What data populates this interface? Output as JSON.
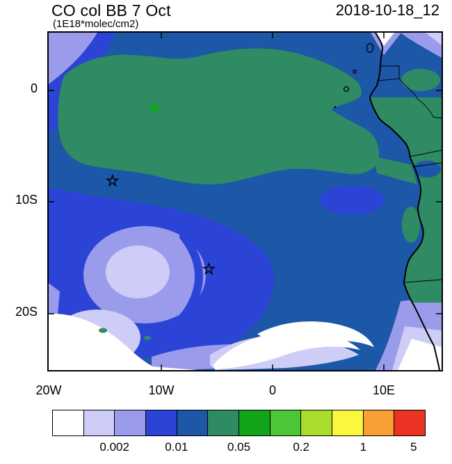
{
  "header": {
    "title": "CO col BB 7 Oct",
    "subtitle": "(1E18*molec/cm2)",
    "datetime": "2018-10-18_12"
  },
  "map": {
    "y_axis_labels": [
      "0",
      "10S",
      "20S"
    ],
    "x_axis_labels": [
      "20W",
      "10W",
      "0",
      "10E"
    ]
  },
  "colorbar": {
    "colors": [
      "#ffffff",
      "#cdcdf7",
      "#9b9bec",
      "#2b44d5",
      "#1d57a8",
      "#2f8b63",
      "#12a51a",
      "#4cc636",
      "#a9dc2c",
      "#faf73f",
      "#f8a033",
      "#eb3323"
    ],
    "labels": [
      "0.002",
      "0.01",
      "0.05",
      "0.2",
      "1",
      "5"
    ]
  },
  "chart_data": {
    "type": "heatmap",
    "subtype": "filled-contour-map",
    "title": "CO col BB 7 Oct",
    "units": "1E18*molec/cm2",
    "timestamp": "2018-10-18_12",
    "x_ticks": [
      "20W",
      "10W",
      "0",
      "10E"
    ],
    "y_ticks": [
      "0",
      "10S",
      "20S"
    ],
    "lon_range_deg": [
      -20,
      15.1
    ],
    "lat_range_deg": [
      -25.1,
      5.2
    ],
    "contour_levels": [
      0.002,
      0.005,
      0.01,
      0.02,
      0.05,
      0.1,
      0.2,
      0.5,
      1,
      2,
      5
    ],
    "labeled_levels": [
      "0.002",
      "0.01",
      "0.05",
      "0.2",
      "1",
      "5"
    ],
    "palette": [
      "#ffffff",
      "#cdcdf7",
      "#9b9bec",
      "#2b44d5",
      "#1d57a8",
      "#2f8b63",
      "#12a51a",
      "#4cc636",
      "#a9dc2c",
      "#faf73f",
      "#f8a033",
      "#eb3323"
    ],
    "legend_position": "bottom",
    "grid": false,
    "markers_lonlat": [
      {
        "symbol": "star",
        "lon": -14.3,
        "lat": -8.1
      },
      {
        "symbol": "star",
        "lon": -5.7,
        "lat": -16.0
      }
    ],
    "description": "CO column from biomass burning over the tropical southeast Atlantic and west-central Africa; broad 0.05-0.2 plume (green) over the Gulf of Guinea, 0.01-0.05 blues over mid ocean, values below 0.002 (white) in the far southwest and along the Namib coast."
  }
}
